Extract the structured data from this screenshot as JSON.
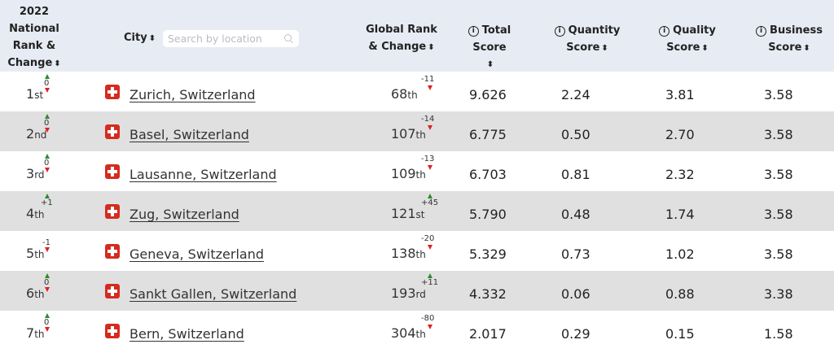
{
  "header": {
    "national_rank_lines": [
      "2022",
      "National",
      "Rank &",
      "Change"
    ],
    "city_label": "City",
    "search_placeholder": "Search by location",
    "global_rank_lines": [
      "Global Rank",
      "& Change"
    ],
    "total_score_label": "Total Score",
    "quantity_lines": [
      "Quantity",
      "Score"
    ],
    "quality_lines": [
      "Quality",
      "Score"
    ],
    "business_lines": [
      "Business",
      "Score"
    ],
    "info_glyph": "i",
    "sort_glyph": "⬍"
  },
  "rows": [
    {
      "rank": "1",
      "rank_sfx": "st",
      "rank_change": "0",
      "city": "Zurich, Switzerland",
      "global_rank": "68",
      "global_sfx": "th",
      "global_change": "-11",
      "global_dir": "down",
      "total": "9.626",
      "quantity": "2.24",
      "quality": "3.81",
      "business": "3.58"
    },
    {
      "rank": "2",
      "rank_sfx": "nd",
      "rank_change": "0",
      "city": "Basel, Switzerland",
      "global_rank": "107",
      "global_sfx": "th",
      "global_change": "-14",
      "global_dir": "down",
      "total": "6.775",
      "quantity": "0.50",
      "quality": "2.70",
      "business": "3.58"
    },
    {
      "rank": "3",
      "rank_sfx": "rd",
      "rank_change": "0",
      "city": "Lausanne, Switzerland",
      "global_rank": "109",
      "global_sfx": "th",
      "global_change": "-13",
      "global_dir": "down",
      "total": "6.703",
      "quantity": "0.81",
      "quality": "2.32",
      "business": "3.58"
    },
    {
      "rank": "4",
      "rank_sfx": "th",
      "rank_change": "+1",
      "rank_dir": "up",
      "city": "Zug, Switzerland",
      "global_rank": "121",
      "global_sfx": "st",
      "global_change": "+45",
      "global_dir": "up",
      "total": "5.790",
      "quantity": "0.48",
      "quality": "1.74",
      "business": "3.58"
    },
    {
      "rank": "5",
      "rank_sfx": "th",
      "rank_change": "-1",
      "rank_dir": "down",
      "city": "Geneva, Switzerland",
      "global_rank": "138",
      "global_sfx": "th",
      "global_change": "-20",
      "global_dir": "down",
      "total": "5.329",
      "quantity": "0.73",
      "quality": "1.02",
      "business": "3.58"
    },
    {
      "rank": "6",
      "rank_sfx": "th",
      "rank_change": "0",
      "city": "Sankt Gallen, Switzerland",
      "global_rank": "193",
      "global_sfx": "rd",
      "global_change": "+11",
      "global_dir": "up",
      "total": "4.332",
      "quantity": "0.06",
      "quality": "0.88",
      "business": "3.38"
    },
    {
      "rank": "7",
      "rank_sfx": "th",
      "rank_change": "0",
      "city": "Bern, Switzerland",
      "global_rank": "304",
      "global_sfx": "th",
      "global_change": "-80",
      "global_dir": "down",
      "total": "2.017",
      "quantity": "0.29",
      "quality": "0.15",
      "business": "1.58"
    }
  ],
  "colors": {
    "header_bg": "#e7ebf3",
    "alt_row_bg": "#e0e0e0",
    "up_arrow": "#2e8b2e",
    "down_arrow": "#e02020",
    "flag_red": "#d52b1e"
  },
  "icons": {
    "flag": "swiss-flag-icon",
    "search": "search-icon",
    "info": "info-icon",
    "sort": "sort-icon"
  }
}
